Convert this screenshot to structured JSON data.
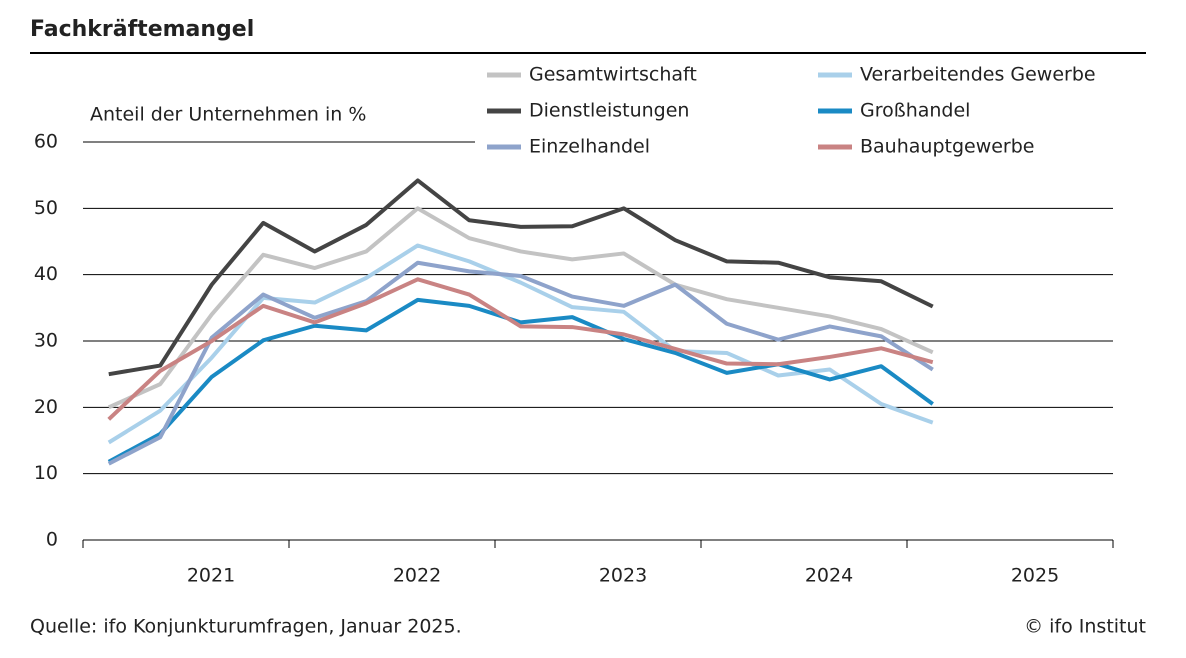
{
  "chart_data": {
    "type": "line",
    "title": "Fachkräftemangel",
    "y_label": "Anteil der Unternehmen in %",
    "source": "Quelle: ifo Konjunkturumfragen, Januar 2025.",
    "copyright": "© ifo Institut",
    "year_labels": [
      "2021",
      "2022",
      "2023",
      "2024",
      "2025"
    ],
    "ylim": [
      0,
      60
    ],
    "yticks": [
      0,
      10,
      20,
      30,
      40,
      50,
      60
    ],
    "grid": true,
    "series": [
      {
        "name": "Gesamtwirtschaft",
        "color": "#c3c3c3",
        "values": [
          20,
          23.5,
          34,
          43,
          41,
          43.5,
          50,
          45.5,
          43.5,
          42.3,
          43.2,
          38.5,
          36.3,
          35,
          33.7,
          31.8,
          28.3
        ]
      },
      {
        "name": "Verarbeitendes Gewerbe",
        "color": "#a9d0ea",
        "values": [
          14.7,
          19.5,
          27.5,
          36.5,
          35.8,
          39.5,
          44.4,
          42,
          38.8,
          35.1,
          34.4,
          28.5,
          28.2,
          24.8,
          25.7,
          20.5,
          17.7
        ]
      },
      {
        "name": "Dienstleistungen",
        "color": "#444444",
        "values": [
          25,
          26.3,
          38.5,
          47.8,
          43.5,
          47.5,
          54.2,
          48.2,
          47.2,
          47.3,
          50,
          45.2,
          42,
          41.8,
          39.6,
          39,
          35.2
        ]
      },
      {
        "name": "Großhandel",
        "color": "#1a8ac4",
        "values": [
          11.8,
          16,
          24.6,
          30.1,
          32.3,
          31.6,
          36.2,
          35.3,
          32.8,
          33.6,
          30.3,
          28.2,
          25.2,
          26.5,
          24.2,
          26.2,
          20.5
        ]
      },
      {
        "name": "Einzelhandel",
        "color": "#8ea3cb",
        "values": [
          11.5,
          15.5,
          30.5,
          37,
          33.5,
          36,
          41.8,
          40.5,
          39.8,
          36.7,
          35.3,
          38.5,
          32.6,
          30.2,
          32.2,
          30.7,
          25.7
        ]
      },
      {
        "name": "Bauhauptgewerbe",
        "color": "#c98383",
        "values": [
          18.2,
          25.5,
          30,
          35.3,
          32.8,
          35.7,
          39.3,
          37,
          32.2,
          32.1,
          31,
          28.8,
          26.6,
          26.5,
          27.6,
          28.9,
          26.8
        ]
      }
    ]
  }
}
